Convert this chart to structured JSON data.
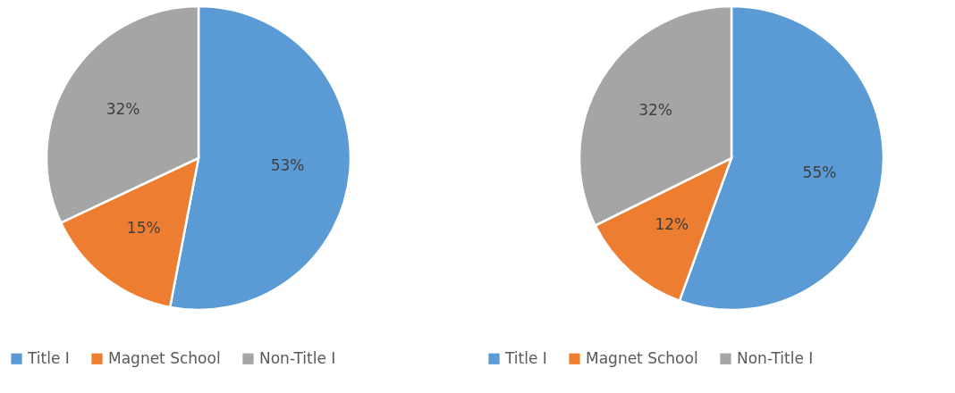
{
  "chart_data": [
    {
      "type": "pie",
      "categories": [
        "Title I",
        "Magnet School",
        "Non-Title I"
      ],
      "values": [
        53,
        15,
        32
      ],
      "colors": [
        "#5b9bd5",
        "#ed7d31",
        "#a5a5a5"
      ],
      "value_labels": [
        "53%",
        "15%",
        "32%"
      ],
      "legend": "bottom"
    },
    {
      "type": "pie",
      "categories": [
        "Title I",
        "Magnet School",
        "Non-Title I"
      ],
      "values": [
        55,
        12,
        32
      ],
      "colors": [
        "#5b9bd5",
        "#ed7d31",
        "#a5a5a5"
      ],
      "value_labels": [
        "55%",
        "12%",
        "32%"
      ],
      "legend": "bottom"
    }
  ]
}
